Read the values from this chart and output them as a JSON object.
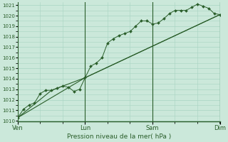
{
  "title": "",
  "xlabel": "Pression niveau de la mer( hPa )",
  "ylabel": "",
  "background_color": "#cbe8da",
  "grid_color": "#a8d4c2",
  "line_color": "#2a5e2a",
  "ylim": [
    1010,
    1021
  ],
  "day_labels": [
    "Ven",
    "Lun",
    "Sam",
    "Dim"
  ],
  "day_positions": [
    0.0,
    0.333,
    0.667,
    1.0
  ],
  "yticks": [
    1010,
    1011,
    1012,
    1013,
    1014,
    1015,
    1016,
    1017,
    1018,
    1019,
    1020,
    1021
  ],
  "series1_x": [
    0.0,
    0.028,
    0.056,
    0.083,
    0.111,
    0.139,
    0.167,
    0.194,
    0.222,
    0.25,
    0.278,
    0.306,
    0.333,
    0.361,
    0.389,
    0.417,
    0.444,
    0.472,
    0.5,
    0.528,
    0.556,
    0.583,
    0.611,
    0.639,
    0.667,
    0.694,
    0.722,
    0.75,
    0.778,
    0.806,
    0.833,
    0.861,
    0.889,
    0.917,
    0.944,
    0.972,
    1.0
  ],
  "series1_y": [
    1010.3,
    1011.1,
    1011.5,
    1011.7,
    1012.6,
    1012.9,
    1012.9,
    1013.1,
    1013.3,
    1013.2,
    1012.8,
    1013.0,
    1014.1,
    1015.2,
    1015.5,
    1016.0,
    1017.4,
    1017.8,
    1018.1,
    1018.3,
    1018.5,
    1019.0,
    1019.5,
    1019.5,
    1019.2,
    1019.3,
    1019.7,
    1020.2,
    1020.5,
    1020.5,
    1020.5,
    1020.8,
    1021.1,
    1020.9,
    1020.7,
    1020.2,
    1020.1
  ],
  "series2_x": [
    0.0,
    0.333,
    1.0
  ],
  "series2_y": [
    1010.3,
    1014.1,
    1020.1
  ],
  "series3_x": [
    0.0,
    0.167,
    0.333,
    1.0
  ],
  "series3_y": [
    1010.3,
    1012.9,
    1014.1,
    1020.1
  ],
  "xlim": [
    0.0,
    1.0
  ]
}
